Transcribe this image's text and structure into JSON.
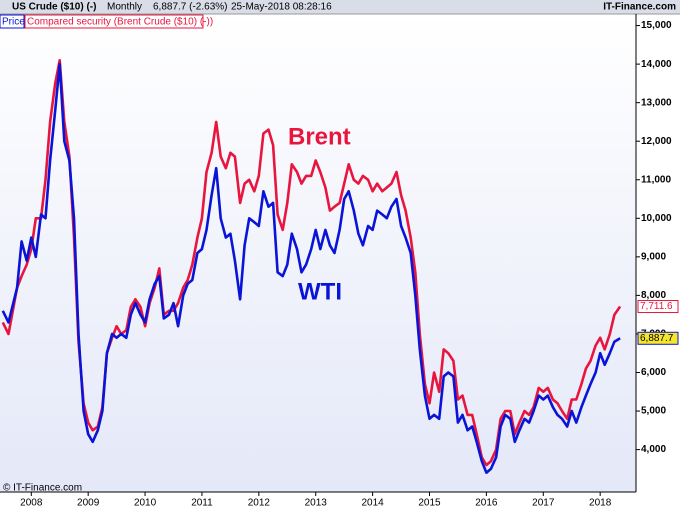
{
  "chart_data": {
    "type": "line",
    "title": "US Crude ($10) (-)",
    "period": "Monthly",
    "last_quote": "6,887.7 (-2.63%)",
    "timestamp": "25-May-2018 08:28:16",
    "source": "IT-Finance.com",
    "legend_price": "Price",
    "legend_compared": "Compared security (Brent Crude ($10) (-))",
    "copyright": "© IT-Finance.com",
    "annotations": [
      "Brent",
      "WTI"
    ],
    "x": [
      2007.5,
      2007.6,
      2007.75,
      2007.83,
      2007.92,
      2008.0,
      2008.08,
      2008.17,
      2008.25,
      2008.33,
      2008.42,
      2008.5,
      2008.58,
      2008.67,
      2008.75,
      2008.83,
      2008.92,
      2009.0,
      2009.08,
      2009.17,
      2009.25,
      2009.33,
      2009.42,
      2009.5,
      2009.58,
      2009.67,
      2009.75,
      2009.83,
      2009.92,
      2010.0,
      2010.08,
      2010.17,
      2010.25,
      2010.33,
      2010.42,
      2010.5,
      2010.58,
      2010.67,
      2010.75,
      2010.83,
      2010.92,
      2011.0,
      2011.08,
      2011.17,
      2011.25,
      2011.33,
      2011.42,
      2011.5,
      2011.58,
      2011.67,
      2011.75,
      2011.83,
      2011.92,
      2012.0,
      2012.08,
      2012.17,
      2012.25,
      2012.33,
      2012.42,
      2012.5,
      2012.58,
      2012.67,
      2012.75,
      2012.83,
      2012.92,
      2013.0,
      2013.08,
      2013.17,
      2013.25,
      2013.33,
      2013.42,
      2013.5,
      2013.58,
      2013.67,
      2013.75,
      2013.83,
      2013.92,
      2014.0,
      2014.08,
      2014.17,
      2014.25,
      2014.33,
      2014.42,
      2014.5,
      2014.58,
      2014.67,
      2014.75,
      2014.83,
      2014.92,
      2015.0,
      2015.08,
      2015.17,
      2015.25,
      2015.33,
      2015.42,
      2015.5,
      2015.58,
      2015.67,
      2015.75,
      2015.83,
      2015.92,
      2016.0,
      2016.08,
      2016.17,
      2016.25,
      2016.33,
      2016.42,
      2016.5,
      2016.58,
      2016.67,
      2016.75,
      2016.83,
      2016.92,
      2017.0,
      2017.08,
      2017.17,
      2017.25,
      2017.33,
      2017.42,
      2017.5,
      2017.58,
      2017.67,
      2017.75,
      2017.83,
      2017.92,
      2018.0,
      2018.08,
      2018.17,
      2018.25,
      2018.35
    ],
    "series": [
      {
        "name": "WTI",
        "color": "#0a14d6",
        "values": [
          7600,
          7300,
          8200,
          9400,
          8900,
          9500,
          9000,
          10100,
          10000,
          11500,
          12800,
          14000,
          12000,
          11500,
          10000,
          7000,
          5000,
          4400,
          4200,
          4500,
          5000,
          6500,
          7000,
          6900,
          7000,
          6900,
          7500,
          7800,
          7500,
          7300,
          7900,
          8300,
          8500,
          7400,
          7500,
          7800,
          7200,
          8000,
          8300,
          8400,
          9100,
          9200,
          9700,
          10600,
          11300,
          10000,
          9500,
          9600,
          8900,
          7900,
          9300,
          10000,
          9900,
          9800,
          10700,
          10300,
          10400,
          8600,
          8500,
          8800,
          9600,
          9200,
          8600,
          8800,
          9200,
          9700,
          9200,
          9700,
          9300,
          9100,
          9700,
          10500,
          10700,
          10200,
          9600,
          9300,
          9800,
          9700,
          10200,
          10100,
          10000,
          10300,
          10500,
          9800,
          9500,
          9100,
          8000,
          6600,
          5400,
          4800,
          4900,
          4800,
          5900,
          6000,
          5900,
          4700,
          4900,
          4500,
          4600,
          4200,
          3700,
          3400,
          3500,
          3800,
          4600,
          4900,
          4800,
          4200,
          4500,
          4800,
          4700,
          5000,
          5400,
          5300,
          5400,
          5100,
          4900,
          4800,
          4600,
          5000,
          4700,
          5100,
          5400,
          5700,
          6000,
          6500,
          6200,
          6500,
          6800,
          6887.7
        ],
        "value_labels": [
          null,
          null,
          null,
          null,
          null,
          null,
          null,
          null,
          null,
          null,
          null,
          null,
          null,
          null,
          null,
          null,
          null,
          null,
          null,
          null,
          null,
          null,
          null,
          null,
          null,
          null,
          null,
          null,
          null,
          null,
          null,
          null,
          null,
          null,
          null,
          null,
          null,
          null,
          null,
          null,
          null,
          null,
          null,
          null,
          null,
          null,
          null,
          null,
          null,
          null,
          null,
          null,
          null,
          null,
          null,
          null,
          null,
          null,
          null,
          null,
          null,
          null,
          null,
          null,
          null,
          null,
          null,
          null,
          null,
          null,
          null,
          null,
          null,
          null,
          null,
          null,
          null,
          null,
          null,
          null,
          null,
          null,
          null,
          null,
          null,
          null,
          null,
          null,
          null,
          null,
          null,
          null,
          null,
          null,
          null,
          null,
          null,
          null,
          null,
          null,
          null,
          null,
          null,
          null,
          null,
          null,
          null,
          null,
          null,
          null,
          null,
          null,
          null,
          null,
          null,
          null,
          null,
          null,
          null,
          null,
          null,
          null,
          null,
          null,
          null,
          null,
          null,
          null,
          null,
          "6,887.7"
        ]
      },
      {
        "name": "Brent",
        "color": "#e8163e",
        "values": [
          7300,
          7000,
          8200,
          8500,
          8800,
          9200,
          10000,
          10000,
          11000,
          12500,
          13500,
          14100,
          12500,
          11600,
          9500,
          6800,
          5200,
          4700,
          4500,
          4600,
          5100,
          6500,
          6900,
          7200,
          7000,
          7100,
          7700,
          7900,
          7700,
          7200,
          7800,
          8200,
          8700,
          7500,
          7600,
          7600,
          7800,
          8200,
          8400,
          8800,
          9500,
          10000,
          11200,
          11700,
          12500,
          11600,
          11300,
          11700,
          11600,
          10400,
          10900,
          11000,
          10700,
          11100,
          12200,
          12300,
          11900,
          10100,
          9700,
          10400,
          11400,
          11200,
          10900,
          11100,
          11100,
          11500,
          11200,
          10800,
          10200,
          10300,
          10400,
          10900,
          11400,
          11000,
          10900,
          11100,
          11000,
          10700,
          10900,
          10700,
          10800,
          10900,
          11200,
          10600,
          10200,
          9500,
          8600,
          7000,
          5700,
          5200,
          6000,
          5500,
          6600,
          6500,
          6300,
          5300,
          5400,
          4900,
          4900,
          4400,
          3800,
          3600,
          3700,
          4000,
          4800,
          5000,
          5000,
          4400,
          4700,
          5000,
          4900,
          5100,
          5600,
          5500,
          5600,
          5300,
          5200,
          5000,
          4800,
          5300,
          5300,
          5700,
          6100,
          6300,
          6700,
          6900,
          6600,
          7000,
          7500,
          7711.6
        ],
        "value_labels": [
          null,
          null,
          null,
          null,
          null,
          null,
          null,
          null,
          null,
          null,
          null,
          null,
          null,
          null,
          null,
          null,
          null,
          null,
          null,
          null,
          null,
          null,
          null,
          null,
          null,
          null,
          null,
          null,
          null,
          null,
          null,
          null,
          null,
          null,
          null,
          null,
          null,
          null,
          null,
          null,
          null,
          null,
          null,
          null,
          null,
          null,
          null,
          null,
          null,
          null,
          null,
          null,
          null,
          null,
          null,
          null,
          null,
          null,
          null,
          null,
          null,
          null,
          null,
          null,
          null,
          null,
          null,
          null,
          null,
          null,
          null,
          null,
          null,
          null,
          null,
          null,
          null,
          null,
          null,
          null,
          null,
          null,
          null,
          null,
          null,
          null,
          null,
          null,
          null,
          null,
          null,
          null,
          null,
          null,
          null,
          null,
          null,
          null,
          null,
          null,
          null,
          null,
          null,
          null,
          null,
          null,
          null,
          null,
          null,
          null,
          null,
          null,
          null,
          null,
          null,
          null,
          null,
          null,
          null,
          null,
          null,
          null,
          null,
          null,
          null,
          null,
          null,
          null,
          null,
          "7,711.6"
        ]
      }
    ],
    "xlim": [
      2007.45,
      2018.63
    ],
    "xticks": [
      2008,
      2009,
      2010,
      2011,
      2012,
      2013,
      2014,
      2015,
      2016,
      2017,
      2018
    ],
    "ylim": [
      2900,
      15300
    ],
    "yticks": [
      {
        "value": 4000,
        "label": "4,000"
      },
      {
        "value": 5000,
        "label": "5,000"
      },
      {
        "value": 6000,
        "label": "6,000"
      },
      {
        "value": 7000,
        "label": "7,000"
      },
      {
        "value": 8000,
        "label": "8,000"
      },
      {
        "value": 9000,
        "label": "9,000"
      },
      {
        "value": 10000,
        "label": "10,000"
      },
      {
        "value": 11000,
        "label": "11,000"
      },
      {
        "value": 12000,
        "label": "12,000"
      },
      {
        "value": 13000,
        "label": "13,000"
      },
      {
        "value": 14000,
        "label": "14,000"
      },
      {
        "value": 15000,
        "label": "15,000"
      }
    ]
  }
}
